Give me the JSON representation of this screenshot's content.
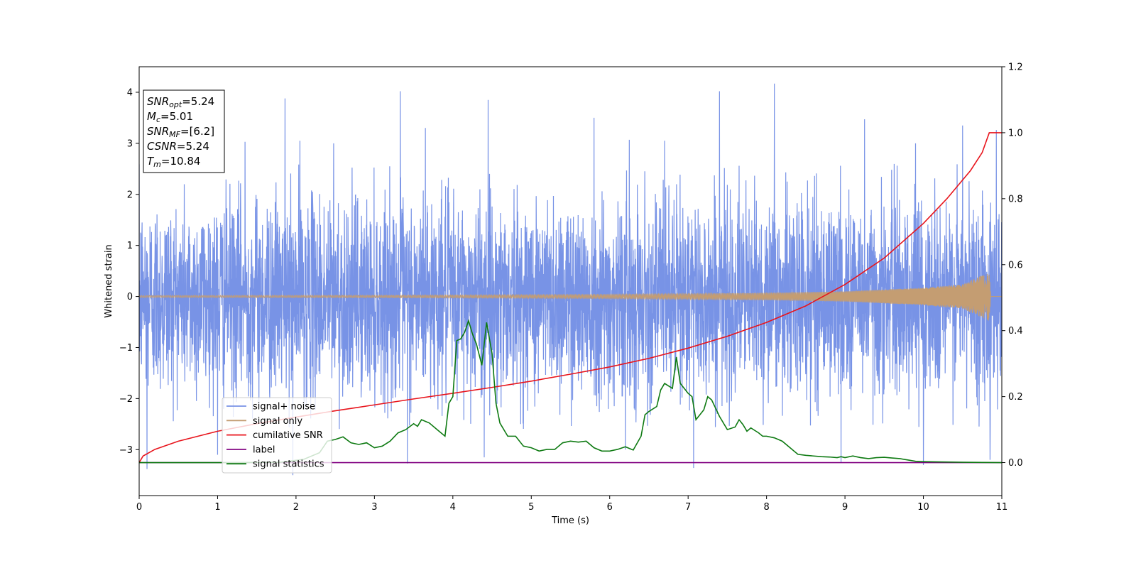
{
  "chart_data": {
    "type": "line",
    "xlabel": "Time (s)",
    "ylabel": "Whitened strain",
    "xlim": [
      0,
      11
    ],
    "ylim": [
      -3.9,
      4.5
    ],
    "y2lim": [
      -0.1,
      1.2
    ],
    "x_ticks": [
      "0",
      "1",
      "2",
      "3",
      "4",
      "5",
      "6",
      "7",
      "8",
      "9",
      "10",
      "11"
    ],
    "y_ticks": [
      "−3",
      "−2",
      "−1",
      "0",
      "1",
      "2",
      "3",
      "4"
    ],
    "y2_ticks": [
      "0.0",
      "0.2",
      "0.4",
      "0.6",
      "0.8",
      "1.0",
      "1.2"
    ],
    "grid": false,
    "legend_position": "lower-left",
    "annotation": {
      "lines": [
        {
          "sym": "SNR",
          "sub": "opt",
          "val": "=5.24"
        },
        {
          "sym": "M",
          "sub": "c",
          "val": "=5.01"
        },
        {
          "sym": "SNR",
          "sub": "MF",
          "val": "=[6.2]"
        },
        {
          "sym": "CSNR",
          "sub": "",
          "val": "=5.24"
        },
        {
          "sym": "T",
          "sub": "m",
          "val": "=10.84"
        }
      ]
    },
    "series": [
      {
        "name": "signal+ noise",
        "axis": "left",
        "color": "#7893e6",
        "description": "white gaussian noise, roughly ±2.2 with spikes to ±4.2, spans 0–11 s",
        "noise_std": 1.0,
        "peaks_up": [
          [
            1.86,
            3.88
          ],
          [
            3.33,
            4.02
          ],
          [
            4.45,
            3.85
          ],
          [
            7.4,
            4.02
          ],
          [
            8.1,
            4.17
          ],
          [
            2.48,
            3.0
          ],
          [
            3.65,
            3.3
          ],
          [
            5.8,
            3.5
          ],
          [
            9.25,
            3.47
          ],
          [
            10.5,
            3.35
          ],
          [
            10.93,
            3.26
          ],
          [
            6.25,
            3.07
          ],
          [
            6.7,
            3.05
          ],
          [
            2.05,
            3.05
          ],
          [
            1.35,
            3.03
          ],
          [
            9.9,
            3.0
          ]
        ],
        "peaks_down": [
          [
            0.1,
            -3.38
          ],
          [
            1.96,
            -3.5
          ],
          [
            7.07,
            -3.36
          ],
          [
            3.42,
            -3.27
          ],
          [
            8.95,
            -3.25
          ],
          [
            10.0,
            -3.3
          ],
          [
            1.0,
            -3.1
          ],
          [
            4.4,
            -3.15
          ],
          [
            6.2,
            -3.0
          ],
          [
            10.85,
            -3.2
          ]
        ]
      },
      {
        "name": "signal only",
        "axis": "left",
        "color": "#c49d72",
        "description": "chirp with amplitude growing from ~0.02 at t=0 to ~0.5 at t=10.84, then 0",
        "amplitude_points": [
          [
            0,
            0.02
          ],
          [
            3,
            0.025
          ],
          [
            6,
            0.04
          ],
          [
            8,
            0.07
          ],
          [
            9,
            0.1
          ],
          [
            10,
            0.17
          ],
          [
            10.5,
            0.24
          ],
          [
            10.84,
            0.48
          ],
          [
            10.86,
            0.0
          ],
          [
            11,
            0.0
          ]
        ]
      },
      {
        "name": "cumilative SNR",
        "axis": "right",
        "color": "#e8141c",
        "x": [
          0,
          0.05,
          0.2,
          0.5,
          1.0,
          1.5,
          2.0,
          2.5,
          3.0,
          3.5,
          4.0,
          4.5,
          5.0,
          5.5,
          6.0,
          6.5,
          7.0,
          7.5,
          8.0,
          8.5,
          9.0,
          9.5,
          10.0,
          10.3,
          10.6,
          10.75,
          10.84,
          11.0
        ],
        "values": [
          0.0,
          0.02,
          0.04,
          0.065,
          0.095,
          0.118,
          0.138,
          0.157,
          0.175,
          0.193,
          0.21,
          0.228,
          0.247,
          0.268,
          0.29,
          0.316,
          0.347,
          0.383,
          0.425,
          0.475,
          0.54,
          0.62,
          0.725,
          0.8,
          0.885,
          0.94,
          1.0,
          1.0
        ]
      },
      {
        "name": "label",
        "axis": "right",
        "color": "#800080",
        "x": [
          0,
          11
        ],
        "values": [
          0,
          0
        ]
      },
      {
        "name": "signal statistics",
        "axis": "right",
        "color": "#0e7a12",
        "x": [
          0,
          1.0,
          1.8,
          2.1,
          2.3,
          2.4,
          2.5,
          2.6,
          2.7,
          2.8,
          2.9,
          3.0,
          3.1,
          3.2,
          3.3,
          3.4,
          3.5,
          3.55,
          3.6,
          3.7,
          3.8,
          3.9,
          3.95,
          4.0,
          4.05,
          4.1,
          4.15,
          4.2,
          4.25,
          4.3,
          4.37,
          4.43,
          4.5,
          4.55,
          4.6,
          4.7,
          4.8,
          4.9,
          5.0,
          5.1,
          5.2,
          5.3,
          5.4,
          5.5,
          5.6,
          5.7,
          5.8,
          5.9,
          6.0,
          6.1,
          6.2,
          6.3,
          6.4,
          6.45,
          6.5,
          6.6,
          6.65,
          6.7,
          6.8,
          6.85,
          6.9,
          7.0,
          7.05,
          7.1,
          7.2,
          7.25,
          7.3,
          7.4,
          7.5,
          7.6,
          7.65,
          7.7,
          7.75,
          7.8,
          7.9,
          7.95,
          8.0,
          8.1,
          8.2,
          8.3,
          8.4,
          8.5,
          8.6,
          8.7,
          8.8,
          8.9,
          8.95,
          9.0,
          9.1,
          9.2,
          9.3,
          9.4,
          9.5,
          9.6,
          9.7,
          9.8,
          9.9,
          10.0,
          10.2,
          10.5,
          11.0
        ],
        "values": [
          0.0,
          0.0,
          0.001,
          0.01,
          0.03,
          0.065,
          0.07,
          0.078,
          0.06,
          0.055,
          0.06,
          0.045,
          0.05,
          0.065,
          0.09,
          0.1,
          0.118,
          0.11,
          0.13,
          0.12,
          0.1,
          0.08,
          0.18,
          0.2,
          0.37,
          0.375,
          0.395,
          0.43,
          0.39,
          0.36,
          0.295,
          0.425,
          0.33,
          0.18,
          0.12,
          0.08,
          0.08,
          0.05,
          0.045,
          0.035,
          0.04,
          0.04,
          0.06,
          0.065,
          0.062,
          0.065,
          0.045,
          0.035,
          0.035,
          0.04,
          0.048,
          0.038,
          0.08,
          0.145,
          0.155,
          0.17,
          0.22,
          0.24,
          0.225,
          0.32,
          0.24,
          0.21,
          0.2,
          0.13,
          0.16,
          0.2,
          0.19,
          0.14,
          0.1,
          0.108,
          0.13,
          0.115,
          0.095,
          0.105,
          0.09,
          0.08,
          0.08,
          0.075,
          0.065,
          0.045,
          0.025,
          0.022,
          0.02,
          0.018,
          0.017,
          0.015,
          0.018,
          0.015,
          0.02,
          0.015,
          0.012,
          0.015,
          0.016,
          0.014,
          0.012,
          0.008,
          0.004,
          0.003,
          0.002,
          0.001,
          0.0
        ]
      }
    ]
  }
}
